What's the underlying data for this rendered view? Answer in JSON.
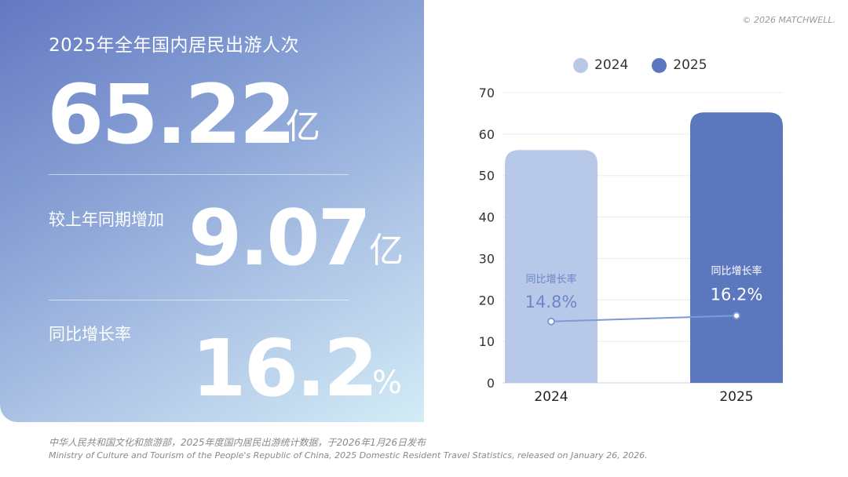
{
  "hero": {
    "title": "2025年全年国内居民出游人次",
    "total_value": "65.22",
    "total_unit": "亿",
    "increase_label": "较上年同期增加",
    "increase_value": "9.07",
    "increase_unit": "亿",
    "growth_label": "同比增长率",
    "growth_value": "16.2",
    "growth_unit": "%"
  },
  "copyright": "© 2026 MATCHWELL.",
  "colors": {
    "bar_2024": "#b7c8e8",
    "bar_2025": "#5b77bd",
    "line": "#7d9ad4"
  },
  "chart_data": {
    "type": "bar",
    "categories": [
      "2024",
      "2025"
    ],
    "values": [
      56.15,
      65.22
    ],
    "ylim": [
      0,
      70
    ],
    "yticks": [
      "0",
      "10",
      "20",
      "30",
      "40",
      "50",
      "60",
      "70"
    ],
    "legend": [
      "2024",
      "2025"
    ],
    "legend_position": "top",
    "grid": true,
    "growth_line": {
      "label": "同比增长率",
      "labels": [
        "14.8%",
        "16.2%"
      ],
      "values": [
        14.8,
        16.2
      ]
    }
  },
  "source": {
    "cn": "中华人民共和国文化和旅游部，2025年度国内居民出游统计数据，于2026年1月26日发布",
    "en": "Ministry of Culture and Tourism of the People's Republic of China, 2025 Domestic Resident Travel Statistics, released on January 26, 2026."
  }
}
